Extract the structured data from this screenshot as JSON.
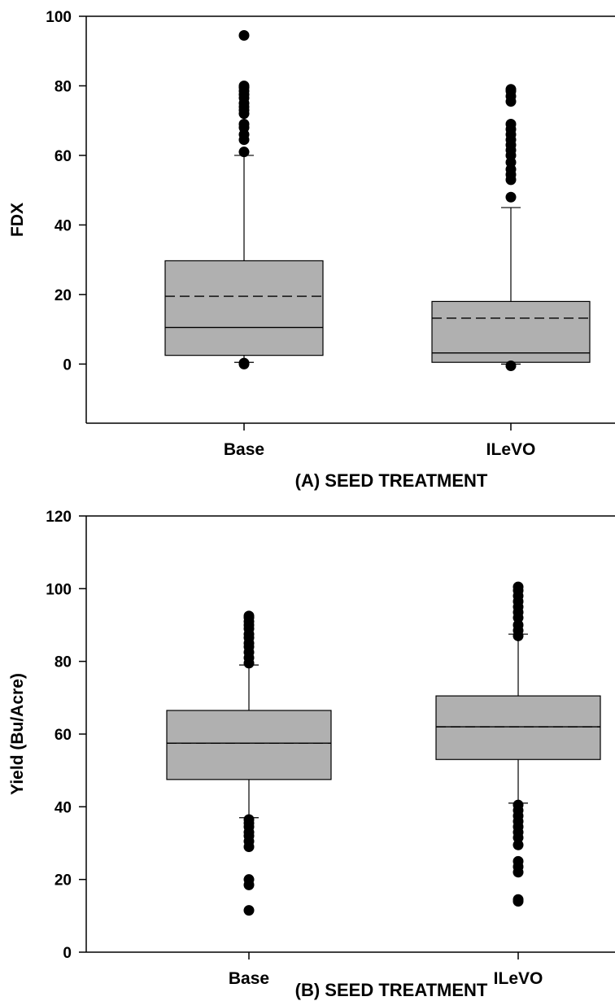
{
  "chart_data": [
    {
      "type": "box",
      "title": "",
      "xlabel": "(A) SEED TREATMENT",
      "ylabel": "FDX",
      "ylim": [
        -17,
        100
      ],
      "yticks": [
        0,
        20,
        40,
        60,
        80,
        100
      ],
      "categories": [
        "Base",
        "ILeVO"
      ],
      "boxes": [
        {
          "category": "Base",
          "q1": 2.5,
          "median": 10.5,
          "mean": 19.5,
          "q3": 29.7,
          "whisker_low": 0.5,
          "whisker_high": 60,
          "outliers": [
            0,
            0.3,
            61,
            64.5,
            66,
            68,
            69,
            72,
            73,
            74,
            75,
            76.5,
            77.5,
            78.5,
            79.5,
            80,
            94.5
          ]
        },
        {
          "category": "ILeVO",
          "q1": 0.5,
          "median": 3.2,
          "mean": 13.2,
          "q3": 18,
          "whisker_low": 0,
          "whisker_high": 45,
          "outliers": [
            -0.5,
            48,
            53,
            54.5,
            56,
            58,
            60,
            61.5,
            63,
            64.5,
            66,
            67.5,
            69,
            75.5,
            77,
            78.5,
            79
          ]
        }
      ],
      "grid": false,
      "line_styles": {
        "median": "solid",
        "mean": "dashed"
      },
      "colors": {
        "box_fill": "#b0b0b0",
        "line": "#000000",
        "outlier": "#000000"
      }
    },
    {
      "type": "box",
      "title": "",
      "xlabel": "(B) SEED TREATMENT",
      "ylabel": "Yield (Bu/Acre)",
      "ylim": [
        0,
        120
      ],
      "yticks": [
        0,
        20,
        40,
        60,
        80,
        100,
        120
      ],
      "categories": [
        "Base",
        "ILeVO"
      ],
      "boxes": [
        {
          "category": "Base",
          "q1": 47.5,
          "median": 57.5,
          "mean": 57.5,
          "q3": 66.5,
          "whisker_low": 37,
          "whisker_high": 79,
          "outliers": [
            11.5,
            18.5,
            20,
            29,
            30.5,
            32,
            33,
            34.5,
            35.5,
            36.5,
            79.5,
            81,
            82.5,
            84,
            85,
            86.5,
            87.5,
            89,
            90,
            91,
            92,
            92.5
          ]
        },
        {
          "category": "ILeVO",
          "q1": 53,
          "median": 62,
          "mean": 62,
          "q3": 70.5,
          "whisker_low": 41,
          "whisker_high": 87.5,
          "outliers": [
            14,
            14.5,
            22,
            23.5,
            25,
            29.5,
            31.5,
            33,
            34.5,
            36,
            37.5,
            39,
            40.5,
            87,
            88.5,
            90,
            92,
            93.5,
            95,
            96.5,
            98,
            99.5,
            100.5
          ]
        }
      ],
      "grid": false,
      "line_styles": {
        "median": "solid",
        "mean": "dashed"
      },
      "colors": {
        "box_fill": "#b0b0b0",
        "line": "#000000",
        "outlier": "#000000"
      }
    }
  ]
}
